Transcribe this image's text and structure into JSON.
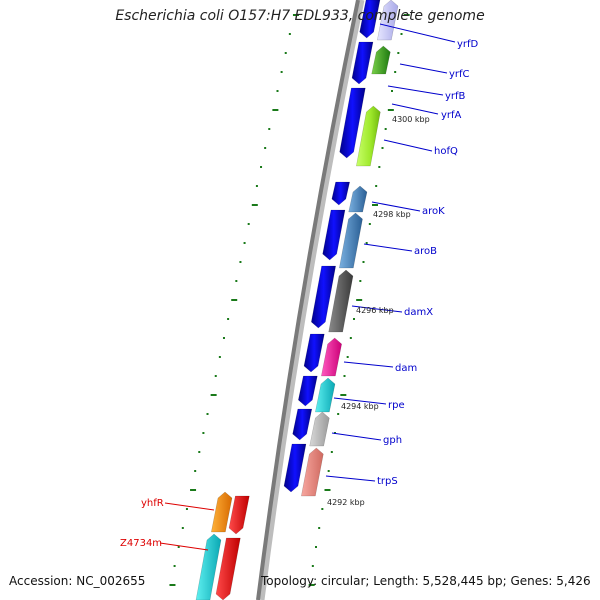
{
  "title": "Escherichia coli O157:H7 EDL933, complete genome",
  "footer": {
    "accession": "Accession: NC_002655",
    "summary": "Topology: circular; Length: 5,528,445 bp; Genes: 5,426"
  },
  "colors": {
    "label_blue": "#0000cc",
    "label_red": "#dd0000",
    "tick_green": "#1a7a1a",
    "backbone": "#777777",
    "cds_blue": "#0000ee"
  },
  "kbp_ticks": [
    "4300 kbp",
    "4298 kbp",
    "4296 kbp",
    "4294 kbp",
    "4292 kbp"
  ],
  "gene_labels_right": [
    "yrfD",
    "yrfC",
    "yrfB",
    "yrfA",
    "hofQ",
    "aroK",
    "aroB",
    "damX",
    "dam",
    "rpe",
    "gph",
    "trpS"
  ],
  "gene_labels_left": [
    "yhfR",
    "Z4734m"
  ]
}
